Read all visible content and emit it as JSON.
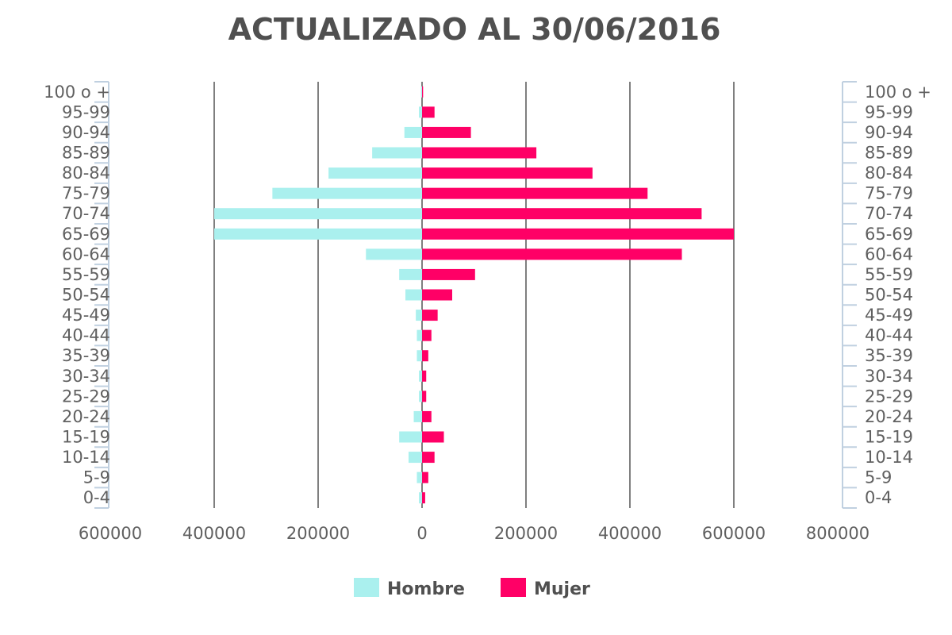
{
  "chart_data": {
    "type": "bar",
    "orientation": "horizontal",
    "title": "ACTUALIZADO AL 30/06/2016",
    "categories": [
      "100 o +",
      "95-99",
      "90-94",
      "85-89",
      "80-84",
      "75-79",
      "70-74",
      "65-69",
      "60-64",
      "55-59",
      "50-54",
      "45-49",
      "40-44",
      "35-39",
      "30-34",
      "25-29",
      "20-24",
      "15-19",
      "10-14",
      "5-9",
      "0-4"
    ],
    "x_ticks": [
      {
        "value": -600000,
        "label": "600000"
      },
      {
        "value": -400000,
        "label": "400000"
      },
      {
        "value": -200000,
        "label": "200000"
      },
      {
        "value": 0,
        "label": "0"
      },
      {
        "value": 200000,
        "label": "200000"
      },
      {
        "value": 400000,
        "label": "400000"
      },
      {
        "value": 600000,
        "label": "600000"
      },
      {
        "value": 800000,
        "label": "800000"
      }
    ],
    "xlim": [
      -600000,
      800000
    ],
    "grid": true,
    "legend_position": "bottom",
    "series": [
      {
        "name": "Hombre",
        "color": "#aaf0ee",
        "values": [
          2000,
          6000,
          34000,
          96000,
          180000,
          288000,
          400000,
          400000,
          108000,
          44000,
          32000,
          12000,
          10000,
          10000,
          6000,
          6000,
          16000,
          44000,
          26000,
          10000,
          6000
        ]
      },
      {
        "name": "Mujer",
        "color": "#ff0066",
        "values": [
          2000,
          24000,
          94000,
          220000,
          328000,
          434000,
          538000,
          600000,
          500000,
          102000,
          58000,
          30000,
          18000,
          12000,
          8000,
          8000,
          18000,
          42000,
          24000,
          12000,
          6000
        ]
      }
    ]
  }
}
